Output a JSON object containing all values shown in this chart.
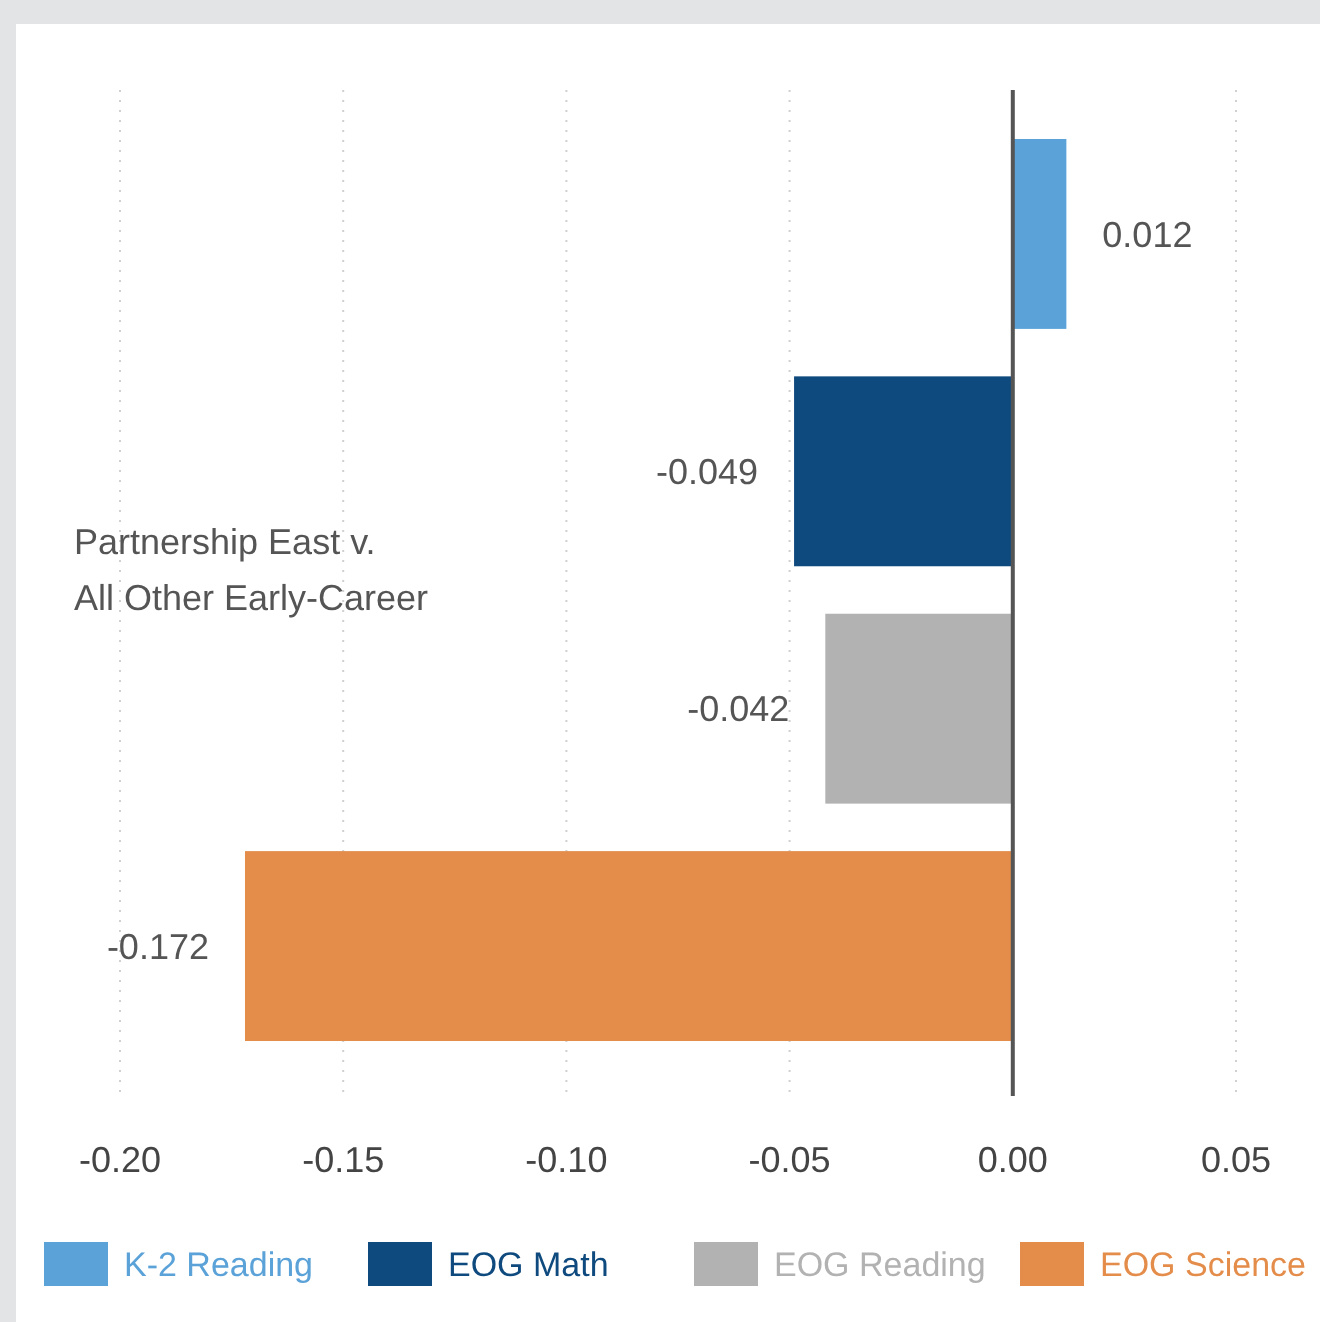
{
  "chart_data": {
    "type": "bar",
    "orientation": "horizontal",
    "categories": [
      "Partnership East v. All Other Early-Career"
    ],
    "series": [
      {
        "name": "K-2 Reading",
        "color": "#5aa2d8",
        "values": [
          0.012
        ]
      },
      {
        "name": "EOG Math",
        "color": "#0f4a7e",
        "values": [
          -0.049
        ]
      },
      {
        "name": "EOG Reading",
        "color": "#b2b2b2",
        "values": [
          -0.042
        ]
      },
      {
        "name": "EOG Science",
        "color": "#e48d4b",
        "values": [
          -0.172
        ]
      }
    ],
    "xlim": [
      -0.2,
      0.05
    ],
    "xticks": [
      {
        "value": -0.2,
        "label": "-0.20"
      },
      {
        "value": -0.15,
        "label": "-0.15"
      },
      {
        "value": -0.1,
        "label": "-0.10"
      },
      {
        "value": -0.05,
        "label": "-0.05"
      },
      {
        "value": 0,
        "label": "0.00"
      },
      {
        "value": 0.05,
        "label": "0.05"
      }
    ],
    "grid": "x",
    "legend": "bottom",
    "data_labels": true
  }
}
